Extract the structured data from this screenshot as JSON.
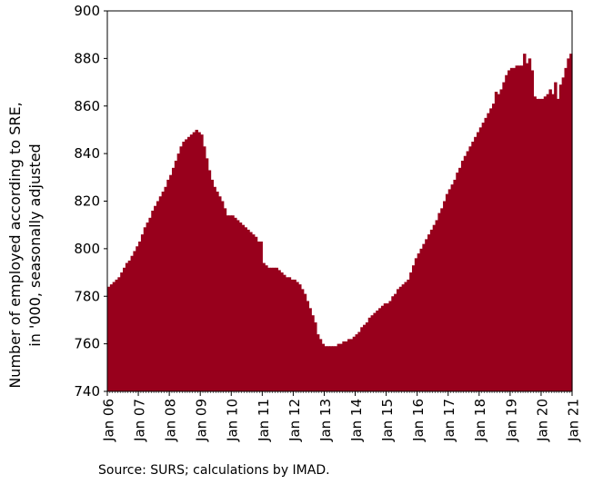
{
  "chart_data": {
    "type": "bar",
    "ylabel": "Number of employed according to SRE,",
    "ylabel_line2": "in '000, seasonally adjusted",
    "ylim": [
      740,
      900
    ],
    "yticks": [
      740,
      760,
      780,
      800,
      820,
      840,
      860,
      880,
      900
    ],
    "grid": false,
    "xtick_labels": [
      "Jan 06",
      "Jan 07",
      "Jan 08",
      "Jan 09",
      "Jan 10",
      "Jan 11",
      "Jan 12",
      "Jan 13",
      "Jan 14",
      "Jan 15",
      "Jan 16",
      "Jan 17",
      "Jan 18",
      "Jan 19",
      "Jan 20",
      "Jan 21"
    ],
    "start": "Jan 06",
    "bar_color": "#98001c",
    "values": [
      784,
      785,
      786,
      787,
      788,
      790,
      792,
      794,
      795,
      797,
      799,
      801,
      803,
      806,
      809,
      811,
      813,
      816,
      818,
      820,
      822,
      824,
      826,
      829,
      831,
      834,
      837,
      840,
      843,
      845,
      846,
      847,
      848,
      849,
      850,
      849,
      848,
      843,
      838,
      833,
      829,
      826,
      824,
      822,
      820,
      817,
      814,
      814,
      814,
      813,
      812,
      811,
      810,
      809,
      808,
      807,
      806,
      805,
      803,
      803,
      794,
      793,
      792,
      792,
      792,
      792,
      791,
      790,
      789,
      788,
      788,
      787,
      787,
      786,
      785,
      783,
      781,
      778,
      775,
      772,
      769,
      764,
      762,
      760,
      759,
      759,
      759,
      759,
      759,
      760,
      760,
      761,
      761,
      762,
      762,
      763,
      764,
      765,
      767,
      768,
      769,
      771,
      772,
      773,
      774,
      775,
      776,
      777,
      777,
      778,
      780,
      781,
      783,
      784,
      785,
      786,
      787,
      790,
      793,
      796,
      798,
      800,
      802,
      804,
      806,
      808,
      810,
      812,
      815,
      817,
      820,
      823,
      825,
      827,
      829,
      832,
      834,
      837,
      839,
      841,
      843,
      845,
      847,
      849,
      851,
      853,
      855,
      857,
      859,
      861,
      866,
      865,
      867,
      870,
      873,
      875,
      876,
      876,
      877,
      877,
      877,
      882,
      878,
      880,
      875,
      864,
      863,
      863,
      863,
      864,
      865,
      867,
      865,
      870,
      863,
      869,
      872,
      876,
      880,
      882
    ]
  },
  "source_note": "Source: SURS; calculations by IMAD."
}
